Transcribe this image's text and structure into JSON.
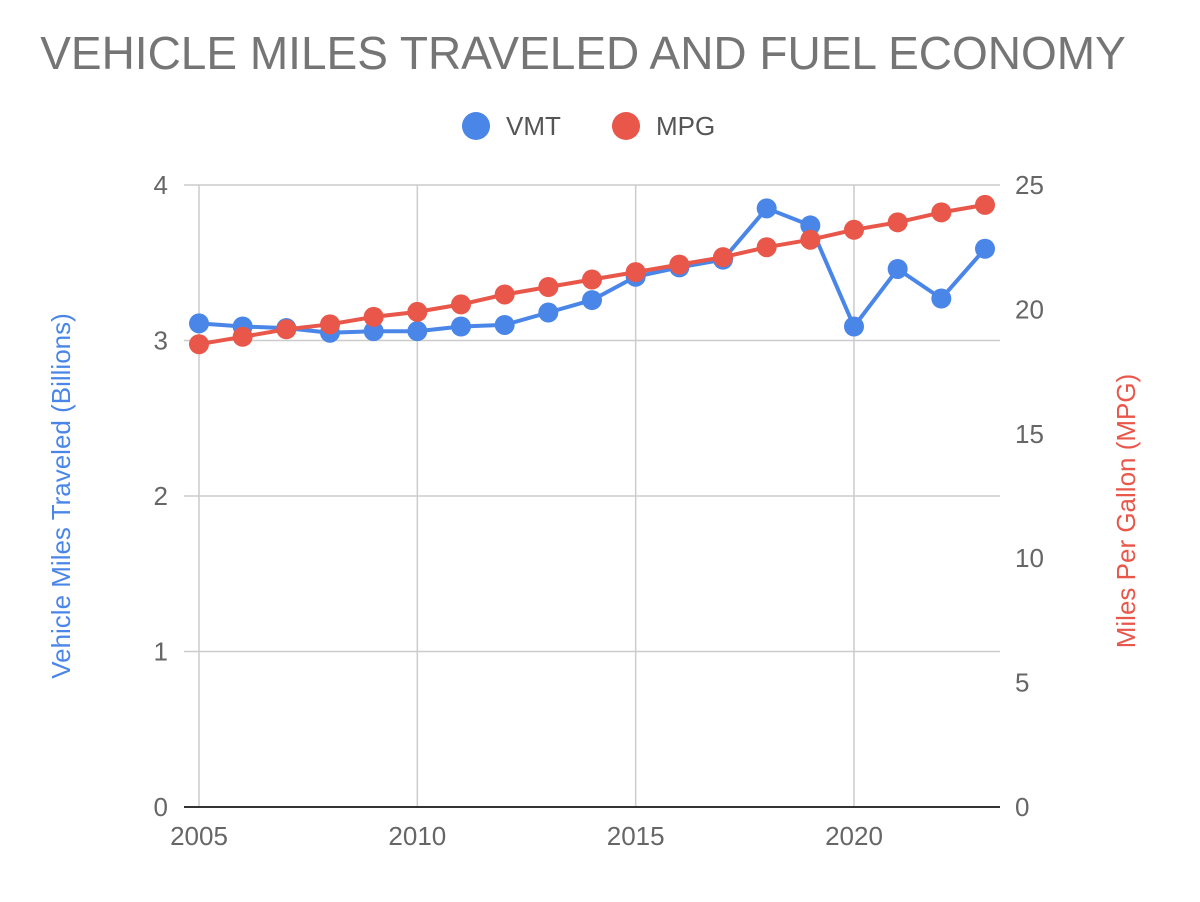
{
  "chart_data": {
    "type": "line",
    "title": "VEHICLE MILES TRAVELED AND FUEL ECONOMY",
    "x": [
      2005,
      2006,
      2007,
      2008,
      2009,
      2010,
      2011,
      2012,
      2013,
      2014,
      2015,
      2016,
      2017,
      2018,
      2019,
      2020,
      2021,
      2022,
      2023
    ],
    "xlim": [
      2005,
      2023
    ],
    "xticks": [
      "2005",
      "2010",
      "2015",
      "2020"
    ],
    "series": [
      {
        "name": "VMT",
        "axis": "left",
        "color": "#4a86e8",
        "values": [
          3.11,
          3.09,
          3.08,
          3.05,
          3.06,
          3.06,
          3.09,
          3.1,
          3.18,
          3.26,
          3.41,
          3.47,
          3.52,
          3.85,
          3.74,
          3.09,
          3.46,
          3.27,
          3.59
        ]
      },
      {
        "name": "MPG",
        "axis": "right",
        "color": "#e8574a",
        "values": [
          18.6,
          18.9,
          19.2,
          19.4,
          19.7,
          19.9,
          20.2,
          20.6,
          20.9,
          21.2,
          21.5,
          21.8,
          22.1,
          22.5,
          22.8,
          23.2,
          23.5,
          23.9,
          24.2
        ]
      }
    ],
    "y_left": {
      "label": "Vehicle Miles Traveled (Billions)",
      "ylim": [
        0,
        4
      ],
      "ticks": [
        "0",
        "1",
        "2",
        "3",
        "4"
      ]
    },
    "y_right": {
      "label": "Miles Per Gallon (MPG)",
      "ylim": [
        0,
        25
      ],
      "ticks": [
        "0",
        "5",
        "10",
        "15",
        "20",
        "25"
      ]
    },
    "legend": {
      "position": "top-center",
      "entries": [
        "VMT",
        "MPG"
      ]
    },
    "grid": true
  }
}
